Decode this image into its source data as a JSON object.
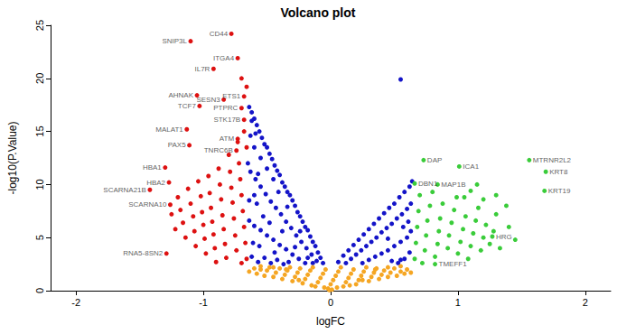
{
  "chart_data": {
    "type": "scatter",
    "title": "Volcano plot",
    "x_label": "logFC",
    "y_label": "-log10(P.Value)",
    "xlim": [
      -2.2,
      2.2
    ],
    "xticks": [
      -2,
      -1,
      0,
      1,
      2
    ],
    "ylim": [
      0,
      25
    ],
    "yticks": [
      0,
      5,
      10,
      15,
      20,
      25
    ],
    "grid": false,
    "marker": "circle",
    "series": [
      {
        "color": "#1414c8",
        "x": [
          -0.06,
          -0.08,
          -0.1,
          -0.12,
          -0.14,
          -0.16,
          -0.18,
          -0.2,
          -0.22,
          -0.24,
          -0.26,
          -0.28,
          -0.3,
          -0.32,
          -0.34,
          -0.36,
          -0.38,
          -0.4,
          -0.42,
          -0.44,
          -0.46,
          -0.48,
          -0.5,
          -0.52,
          -0.54,
          -0.56,
          -0.58,
          -0.6,
          -0.62,
          -0.64,
          -0.11,
          -0.15,
          -0.19,
          -0.23,
          -0.27,
          -0.31,
          -0.35,
          -0.39,
          -0.43,
          -0.47,
          -0.51,
          -0.55,
          -0.59,
          -0.63,
          -0.2,
          -0.25,
          -0.3,
          -0.35,
          -0.4,
          -0.45,
          -0.5,
          -0.55,
          -0.6,
          -0.64,
          -0.62,
          -0.57,
          -0.52,
          -0.47,
          -0.42,
          -0.37,
          -0.33,
          -0.45,
          -0.5,
          -0.55,
          -0.6,
          -0.63,
          -0.58,
          -0.48,
          -0.38,
          -0.28,
          -0.18,
          -0.53,
          -0.6,
          -0.64,
          -0.61,
          -0.56,
          -0.44,
          -0.34,
          -0.41,
          -0.24,
          -0.14,
          -0.65,
          -0.62,
          -0.59,
          -0.57,
          0.06,
          0.1,
          0.14,
          0.18,
          0.22,
          0.26,
          0.3,
          0.34,
          0.38,
          0.42,
          0.46,
          0.5,
          0.54,
          0.58,
          0.62,
          0.64,
          0.12,
          0.16,
          0.2,
          0.24,
          0.28,
          0.32,
          0.36,
          0.4,
          0.44,
          0.48,
          0.52,
          0.56,
          0.6,
          0.63,
          0.25,
          0.3,
          0.35,
          0.4,
          0.45,
          0.5,
          0.55,
          0.6,
          0.63,
          0.58,
          0.53,
          0.62,
          0.48,
          0.57,
          0.61,
          0.45,
          0.55,
          0.55
        ],
        "values": [
          2.6,
          3.1,
          3.6,
          4.2,
          4.6,
          5.1,
          5.7,
          6.0,
          6.5,
          7.0,
          7.4,
          8.0,
          8.5,
          9.0,
          9.3,
          9.8,
          10.2,
          10.9,
          11.3,
          11.8,
          12.4,
          12.9,
          13.5,
          13.8,
          14.4,
          15.0,
          15.6,
          16.2,
          16.8,
          17.3,
          2.8,
          3.4,
          4.0,
          4.6,
          5.2,
          5.9,
          6.5,
          7.2,
          7.8,
          8.4,
          9.1,
          9.8,
          10.5,
          11.2,
          2.6,
          3.0,
          3.4,
          3.9,
          4.3,
          4.8,
          5.2,
          5.7,
          6.1,
          6.6,
          3.2,
          2.7,
          3.1,
          2.6,
          2.9,
          2.5,
          2.7,
          10.5,
          11.5,
          12.5,
          13.5,
          14.6,
          8.2,
          6.4,
          5.6,
          4.1,
          3.1,
          7.0,
          9.0,
          8.5,
          4.5,
          4.2,
          3.6,
          7.9,
          9.3,
          5.6,
          2.6,
          12.0,
          16.0,
          14.8,
          11.0,
          2.7,
          3.3,
          3.8,
          4.3,
          4.8,
          5.3,
          5.8,
          6.3,
          6.8,
          7.3,
          7.8,
          8.2,
          8.8,
          9.3,
          9.8,
          10.3,
          2.6,
          3.0,
          3.4,
          3.8,
          4.2,
          4.6,
          5.0,
          5.5,
          5.9,
          6.3,
          6.8,
          7.2,
          7.7,
          8.2,
          2.6,
          2.9,
          3.2,
          3.5,
          3.8,
          4.2,
          4.6,
          5.0,
          5.6,
          3.0,
          2.6,
          3.6,
          2.8,
          6.0,
          6.5,
          4.9,
          2.9,
          19.9
        ]
      },
      {
        "color": "#f5a623",
        "x": [
          -0.64,
          -0.6,
          -0.58,
          -0.55,
          -0.52,
          -0.5,
          -0.48,
          -0.45,
          -0.43,
          -0.4,
          -0.38,
          -0.36,
          -0.34,
          -0.32,
          -0.3,
          -0.28,
          -0.26,
          -0.24,
          -0.22,
          -0.2,
          -0.18,
          -0.16,
          -0.14,
          -0.12,
          -0.1,
          -0.08,
          -0.06,
          -0.04,
          -0.02,
          0,
          0.02,
          0.04,
          0.06,
          0.08,
          0.1,
          0.12,
          0.14,
          0.16,
          0.18,
          0.2,
          0.22,
          0.24,
          0.26,
          0.28,
          0.3,
          0.32,
          0.34,
          0.36,
          0.38,
          0.4,
          0.42,
          0.45,
          0.47,
          0.5,
          0.52,
          0.55,
          0.58,
          0.6,
          0.63,
          -0.05,
          0.05,
          -0.15,
          0.15,
          -0.25,
          0.25,
          -0.35,
          0.35,
          -0.01,
          0.01,
          -0.45,
          0.45,
          -0.55,
          0.55
        ],
        "values": [
          1.8,
          2.1,
          1.6,
          2.0,
          1.4,
          1.9,
          2.2,
          1.3,
          1.7,
          2.1,
          1.1,
          1.5,
          1.9,
          2.2,
          0.9,
          1.3,
          1.7,
          2.1,
          0.7,
          1.1,
          1.5,
          1.9,
          2.2,
          0.4,
          0.8,
          1.2,
          1.6,
          2.0,
          0.2,
          0.6,
          1.0,
          1.4,
          1.8,
          2.2,
          0.4,
          0.8,
          1.2,
          1.6,
          2.0,
          0.6,
          1.0,
          1.4,
          1.8,
          2.2,
          0.9,
          1.3,
          1.7,
          2.1,
          1.1,
          1.5,
          1.9,
          1.3,
          1.7,
          2.1,
          1.4,
          1.8,
          1.6,
          2.0,
          1.7,
          0.3,
          0.3,
          0.5,
          0.5,
          1.0,
          1.0,
          2.0,
          2.0,
          0.05,
          0.1,
          2.2,
          2.2,
          2.3,
          2.3
        ]
      },
      {
        "color": "#dd1111",
        "x": [
          -0.78,
          -1.1,
          -0.73,
          -0.92,
          -1.05,
          -0.84,
          -1.03,
          -0.68,
          -0.7,
          -0.68,
          -1.13,
          -0.73,
          -1.11,
          -0.74,
          -1.3,
          -1.27,
          -1.42,
          -1.26,
          -1.29,
          -0.66,
          -0.67,
          -0.68,
          -0.69,
          -0.7,
          -0.71,
          -0.72,
          -0.66,
          -0.68,
          -0.7,
          -0.74,
          -0.75,
          -0.76,
          -0.77,
          -0.78,
          -0.79,
          -0.8,
          -0.82,
          -0.83,
          -0.84,
          -0.85,
          -0.86,
          -0.87,
          -0.88,
          -0.9,
          -0.91,
          -0.92,
          -0.93,
          -0.94,
          -0.95,
          -0.96,
          -0.98,
          -0.99,
          -1.0,
          -1.01,
          -1.02,
          -1.04,
          -1.06,
          -1.07,
          -1.08,
          -1.1,
          -1.12,
          -1.14,
          -1.16,
          -1.18,
          -1.2,
          -1.22,
          -1.25,
          -0.73,
          -0.66,
          -0.7
        ],
        "values": [
          24.2,
          23.5,
          21.9,
          20.9,
          18.4,
          18.0,
          17.4,
          18.3,
          17.2,
          16.1,
          15.2,
          14.3,
          13.7,
          13.2,
          11.6,
          10.2,
          9.5,
          8.1,
          3.5,
          3.0,
          4.5,
          6.0,
          7.5,
          9.0,
          10.5,
          12.0,
          13.5,
          15.0,
          2.6,
          3.8,
          5.2,
          6.8,
          8.3,
          9.7,
          11.2,
          12.8,
          3.1,
          4.4,
          5.8,
          7.1,
          8.6,
          10.0,
          11.5,
          2.7,
          4.0,
          5.3,
          6.5,
          7.8,
          9.2,
          10.8,
          3.5,
          4.9,
          6.2,
          7.4,
          8.9,
          10.3,
          4.2,
          5.6,
          7.0,
          8.2,
          9.6,
          5.0,
          6.4,
          7.6,
          8.8,
          5.8,
          7.2,
          14.0,
          19.2,
          20.0
        ]
      },
      {
        "color": "#3acc3a",
        "x": [
          0.73,
          1.01,
          1.56,
          1.69,
          1.68,
          0.66,
          0.84,
          1.27,
          0.82,
          0.66,
          0.67,
          0.68,
          0.69,
          0.7,
          0.72,
          0.74,
          0.75,
          0.76,
          0.78,
          0.8,
          0.82,
          0.84,
          0.85,
          0.86,
          0.88,
          0.92,
          0.93,
          0.95,
          0.97,
          0.99,
          1.0,
          1.02,
          1.04,
          1.06,
          1.08,
          1.1,
          1.12,
          1.14,
          1.16,
          1.18,
          1.2,
          1.22,
          1.25,
          1.28,
          1.3,
          1.33,
          1.4,
          1.45,
          1.05,
          1.1,
          1.2,
          1.15,
          1.3,
          1.38
        ],
        "values": [
          12.3,
          11.7,
          12.3,
          11.2,
          9.4,
          10.1,
          10.0,
          5.1,
          2.5,
          3.0,
          4.5,
          6.0,
          7.5,
          9.0,
          2.6,
          3.8,
          5.2,
          6.6,
          8.0,
          9.3,
          3.2,
          4.4,
          5.6,
          6.8,
          8.2,
          4.0,
          5.2,
          6.4,
          7.6,
          8.8,
          3.5,
          4.6,
          5.8,
          7.0,
          3.0,
          4.2,
          5.4,
          6.6,
          7.8,
          3.8,
          5.0,
          6.2,
          4.4,
          5.6,
          7.2,
          4.0,
          6.0,
          4.8,
          8.8,
          9.4,
          8.6,
          10.0,
          9.0,
          8.0
        ]
      }
    ],
    "annotations": [
      {
        "text": "CD44",
        "x": -0.78,
        "y": 24.2
      },
      {
        "text": "SNIP3L",
        "x": -1.1,
        "y": 23.5
      },
      {
        "text": "ITGA4",
        "x": -0.73,
        "y": 21.9
      },
      {
        "text": "IL7R",
        "x": -0.92,
        "y": 20.9
      },
      {
        "text": "AHNAK",
        "x": -1.05,
        "y": 18.4
      },
      {
        "text": "SESN3",
        "x": -0.84,
        "y": 18.0
      },
      {
        "text": "TCF7",
        "x": -1.03,
        "y": 17.4
      },
      {
        "text": "ETS1",
        "x": -0.68,
        "y": 18.3
      },
      {
        "text": "PTPRC",
        "x": -0.7,
        "y": 17.2
      },
      {
        "text": "STK17B",
        "x": -0.68,
        "y": 16.1
      },
      {
        "text": "MALAT1",
        "x": -1.13,
        "y": 15.2
      },
      {
        "text": "ATM",
        "x": -0.73,
        "y": 14.3
      },
      {
        "text": "PAX5",
        "x": -1.11,
        "y": 13.7
      },
      {
        "text": "TNRC6B",
        "x": -0.74,
        "y": 13.2
      },
      {
        "text": "HBA1",
        "x": -1.3,
        "y": 11.6
      },
      {
        "text": "HBA2",
        "x": -1.27,
        "y": 10.2
      },
      {
        "text": "SCARNA21B",
        "x": -1.42,
        "y": 9.5
      },
      {
        "text": "SCARNA10",
        "x": -1.26,
        "y": 8.1
      },
      {
        "text": "RNA5-8SN2",
        "x": -1.29,
        "y": 3.5
      },
      {
        "text": "DAP",
        "x": 0.73,
        "y": 12.3
      },
      {
        "text": "ICA1",
        "x": 1.01,
        "y": 11.7
      },
      {
        "text": "MTRNR2L2",
        "x": 1.56,
        "y": 12.3
      },
      {
        "text": "KRT8",
        "x": 1.69,
        "y": 11.2
      },
      {
        "text": "KRT19",
        "x": 1.68,
        "y": 9.4
      },
      {
        "text": "DBN1",
        "x": 0.66,
        "y": 10.1
      },
      {
        "text": "MAP1B",
        "x": 0.84,
        "y": 10.0
      },
      {
        "text": "HRG",
        "x": 1.27,
        "y": 5.1
      },
      {
        "text": "TMEFF1",
        "x": 0.82,
        "y": 2.5
      }
    ]
  }
}
